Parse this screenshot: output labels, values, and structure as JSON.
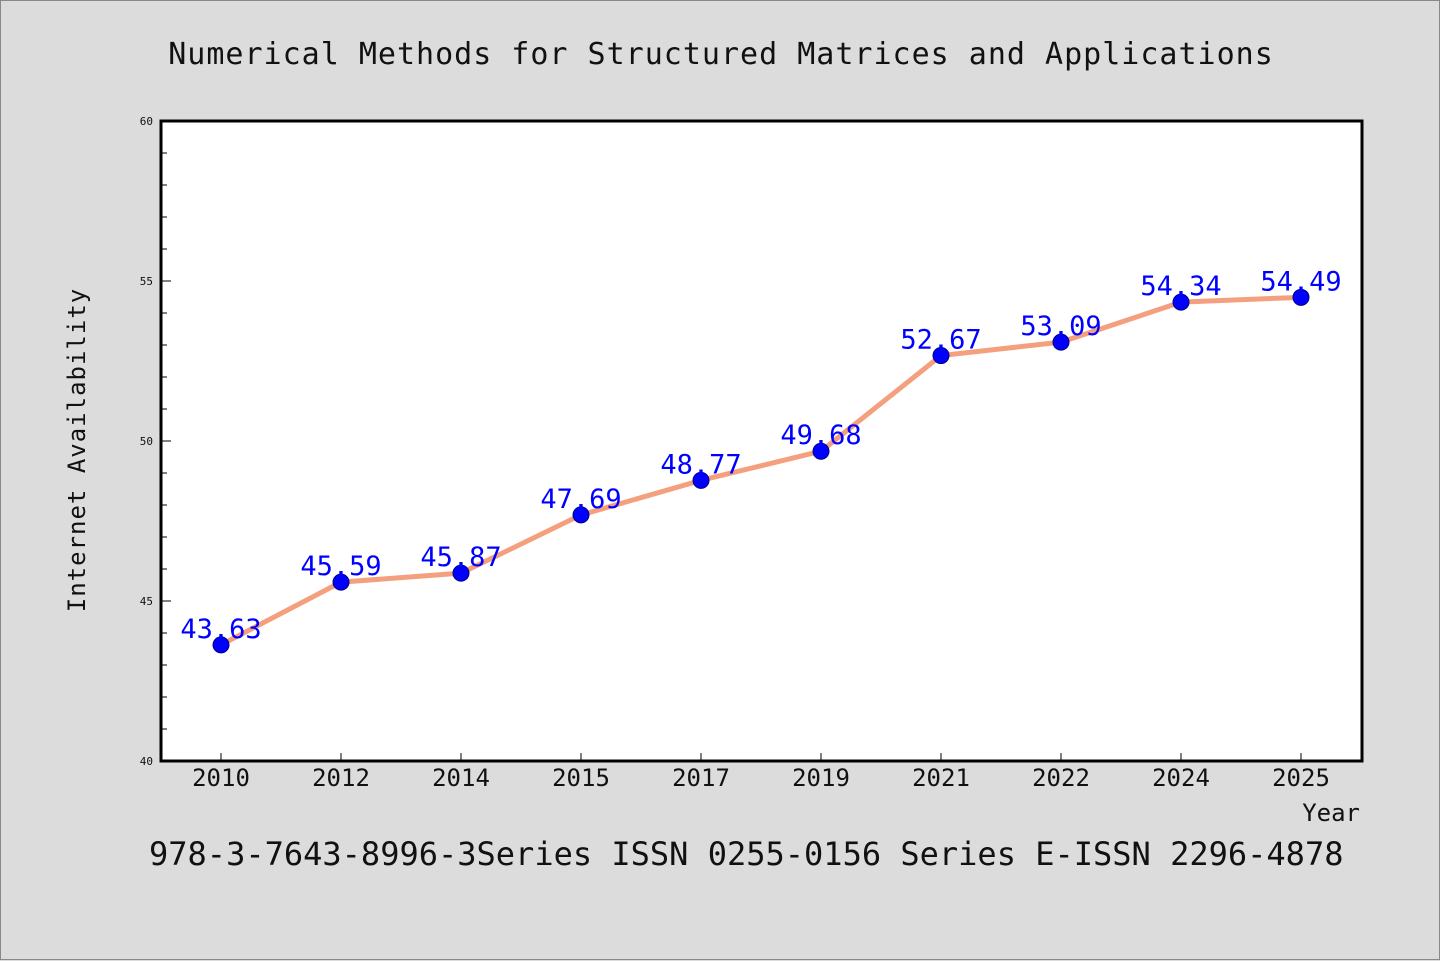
{
  "chart_data": {
    "type": "line",
    "title": "Numerical Methods for Structured Matrices and Applications",
    "xlabel": "Year",
    "ylabel": "Internet Availability",
    "categories": [
      "2010",
      "2012",
      "2014",
      "2015",
      "2017",
      "2019",
      "2021",
      "2022",
      "2024",
      "2025"
    ],
    "series": [
      {
        "values": [
          43.63,
          45.59,
          45.87,
          47.69,
          48.77,
          49.68,
          52.67,
          53.09,
          54.34,
          54.49
        ],
        "data_labels": [
          "43.63",
          "45.59",
          "45.87",
          "47.69",
          "48.77",
          "49.68",
          "52.67",
          "53.09",
          "54.34",
          "54.49"
        ]
      }
    ],
    "ylim": [
      40,
      60
    ],
    "yticks": [
      "40",
      "45",
      "50",
      "55",
      "60"
    ],
    "grid": false,
    "line_color": "#f4a07e",
    "marker_color": "#0000ff",
    "label_color": "#0000ff"
  },
  "footer": {
    "text": "978-3-7643-8996-3Series ISSN 0255-0156 Series E-ISSN 2296-4878"
  },
  "colors": {
    "background": "#dcdcdc",
    "plot_background": "#ffffff",
    "axis": "#000000"
  }
}
